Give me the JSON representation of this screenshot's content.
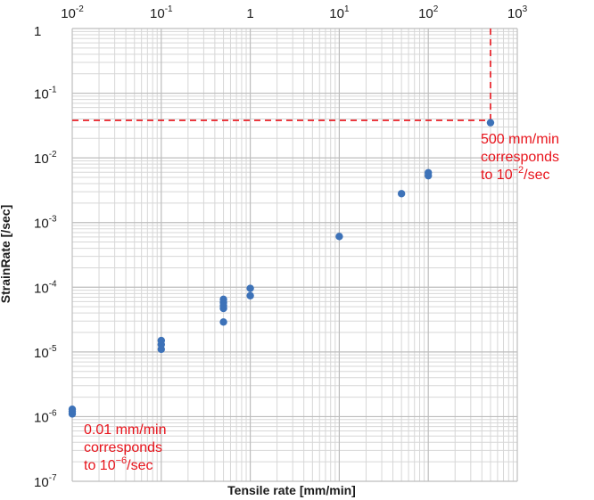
{
  "chart_data": {
    "type": "scatter",
    "title": "",
    "xlabel": "Tensile rate [mm/min]",
    "ylabel": "StrainRate [/sec]",
    "x_scale": "log",
    "y_scale": "log",
    "xlim": [
      0.01,
      1000
    ],
    "ylim": [
      1e-07,
      1
    ],
    "grid": true,
    "x_ticks": [
      {
        "base": "10",
        "exp": "-2"
      },
      {
        "base": "10",
        "exp": "-1"
      },
      {
        "base": "1",
        "exp": ""
      },
      {
        "base": "10",
        "exp": "1"
      },
      {
        "base": "10",
        "exp": "2"
      },
      {
        "base": "10",
        "exp": "3"
      }
    ],
    "y_ticks": [
      {
        "base": "1",
        "exp": ""
      },
      {
        "base": "10",
        "exp": "-1"
      },
      {
        "base": "10",
        "exp": "-2"
      },
      {
        "base": "10",
        "exp": "-3"
      },
      {
        "base": "10",
        "exp": "-4"
      },
      {
        "base": "10",
        "exp": "-5"
      },
      {
        "base": "10",
        "exp": "-6"
      },
      {
        "base": "10",
        "exp": "-7"
      }
    ],
    "point_color": "#3d72b8",
    "points": [
      {
        "x": 0.01,
        "y": 1.1e-06
      },
      {
        "x": 0.01,
        "y": 1.2e-06
      },
      {
        "x": 0.01,
        "y": 1.3e-06
      },
      {
        "x": 0.1,
        "y": 1.1e-05
      },
      {
        "x": 0.1,
        "y": 1.3e-05
      },
      {
        "x": 0.1,
        "y": 1.5e-05
      },
      {
        "x": 0.5,
        "y": 2.9e-05
      },
      {
        "x": 0.5,
        "y": 4.7e-05
      },
      {
        "x": 0.5,
        "y": 5.2e-05
      },
      {
        "x": 0.5,
        "y": 5.8e-05
      },
      {
        "x": 0.5,
        "y": 6.5e-05
      },
      {
        "x": 1,
        "y": 7.4e-05
      },
      {
        "x": 1,
        "y": 9.6e-05
      },
      {
        "x": 10,
        "y": 0.00061
      },
      {
        "x": 50,
        "y": 0.0028
      },
      {
        "x": 100,
        "y": 0.0053
      },
      {
        "x": 100,
        "y": 0.0059
      },
      {
        "x": 500,
        "y": 0.035
      }
    ],
    "reference_lines": {
      "color": "#e8141c",
      "x": 500,
      "y": 0.038
    },
    "annotations": [
      {
        "lines": [
          {
            "text": "500 mm/min"
          },
          {
            "text": "corresponds"
          },
          {
            "text": "to 10",
            "sup": "−2",
            "after": "/sec"
          }
        ]
      },
      {
        "lines": [
          {
            "text": "0.01 mm/min"
          },
          {
            "text": "corresponds"
          },
          {
            "text": "to 10",
            "sup": "−6",
            "after": "/sec"
          }
        ]
      }
    ]
  }
}
